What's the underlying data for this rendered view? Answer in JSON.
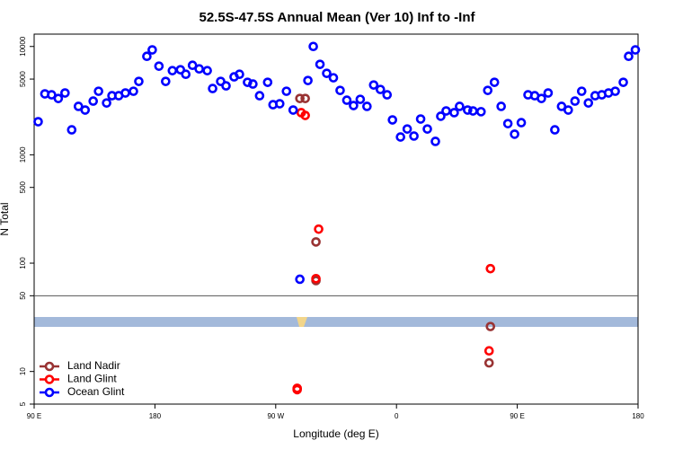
{
  "chart_data": {
    "type": "scatter",
    "title": "52.5S-47.5S Annual Mean (Ver 10)   Inf to -Inf",
    "x_label": "Longitude (deg E)",
    "y_label": "N Total",
    "log_y": true,
    "legend": "bottom-left",
    "xlim": [
      90,
      540
    ],
    "ylim": [
      5,
      13000
    ],
    "xticks": [
      {
        "value": 90,
        "label": "90 E"
      },
      180,
      {
        "value": 270,
        "label": "90 W"
      },
      {
        "value": 360,
        "label": "0"
      },
      {
        "value": 450,
        "label": "90 E"
      },
      {
        "value": 540,
        "label": "180"
      }
    ],
    "yticks": [
      5,
      10,
      50,
      100,
      500,
      1000,
      5000,
      10000
    ],
    "reference_line": 50,
    "series": [
      {
        "name": "Land Nadir",
        "color": "#993333",
        "x": [
          288,
          292,
          300,
          300,
          430,
          429
        ],
        "values": [
          3310,
          3310,
          157,
          69,
          26,
          12
        ]
      },
      {
        "name": "Land Glint",
        "color": "#ff0000",
        "x": [
          289,
          292,
          302,
          300,
          430,
          429,
          286,
          286
        ],
        "values": [
          2450,
          2310,
          206,
          72,
          89,
          15.5,
          7.0,
          6.8
        ]
      },
      {
        "name": "Ocean Glint",
        "color": "#0000ff",
        "x": [
          93,
          98,
          103,
          108,
          113,
          118,
          123,
          128,
          134,
          138,
          144,
          148,
          153,
          158,
          164,
          168,
          174,
          178,
          183,
          188,
          193,
          199,
          203,
          208,
          213,
          219,
          223,
          229,
          233,
          239,
          243,
          249,
          253,
          258,
          264,
          268,
          273,
          278,
          283,
          288,
          294,
          298,
          303,
          308,
          313,
          318,
          323,
          328,
          333,
          338,
          343,
          348,
          353,
          357,
          363,
          368,
          373,
          378,
          383,
          389,
          393,
          397,
          403,
          407,
          413,
          417,
          423,
          428,
          433,
          438,
          443,
          448,
          453,
          458,
          463,
          468,
          473,
          478,
          483,
          488,
          493,
          498,
          503,
          508,
          513,
          518,
          523,
          529,
          533,
          538
        ],
        "values": [
          2020,
          3650,
          3580,
          3310,
          3720,
          1700,
          2800,
          2590,
          3130,
          3860,
          3010,
          3510,
          3510,
          3720,
          3860,
          4760,
          8110,
          9300,
          6580,
          4760,
          5980,
          6100,
          5540,
          6700,
          6210,
          5980,
          4090,
          4760,
          4330,
          5240,
          5540,
          4670,
          4500,
          3510,
          4670,
          2900,
          2960,
          3860,
          2590,
          71,
          4850,
          10000,
          6840,
          5650,
          5140,
          3930,
          3190,
          2850,
          3250,
          2800,
          4410,
          4010,
          3580,
          2100,
          1460,
          1730,
          1490,
          2140,
          1730,
          1330,
          2270,
          2540,
          2450,
          2800,
          2590,
          2540,
          2500,
          3930,
          4670,
          2800,
          1940,
          1550,
          1980,
          3580,
          3510,
          3310,
          3720,
          1700,
          2800,
          2590,
          3130,
          3860,
          3010,
          3510,
          3580,
          3720,
          3860,
          4670,
          8110,
          9300
        ]
      }
    ]
  }
}
